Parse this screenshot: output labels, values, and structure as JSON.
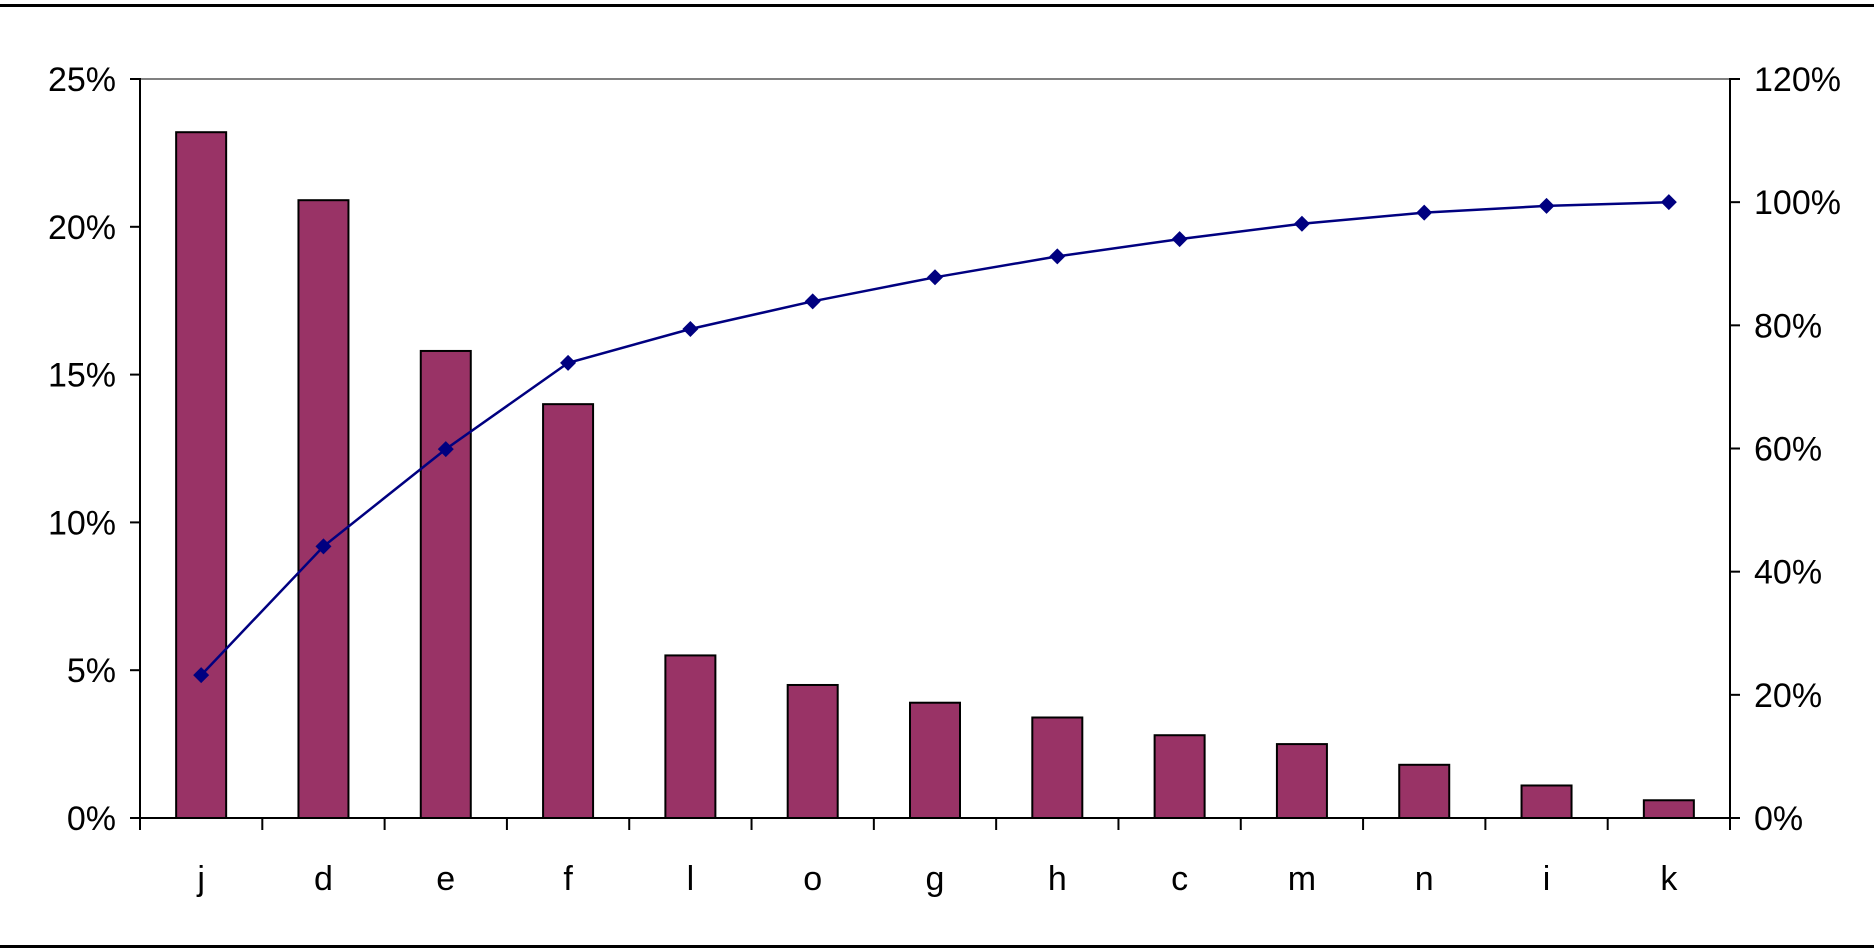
{
  "chart_data": {
    "type": "bar",
    "title": "",
    "xlabel": "",
    "ylabel": "",
    "y2label": "",
    "categories": [
      "j",
      "d",
      "e",
      "f",
      "l",
      "o",
      "g",
      "h",
      "c",
      "m",
      "n",
      "i",
      "k"
    ],
    "series": [
      {
        "type": "bar",
        "axis": "left",
        "values": [
          23.2,
          20.9,
          15.8,
          14.0,
          5.5,
          4.5,
          3.9,
          3.4,
          2.8,
          2.5,
          1.8,
          1.1,
          0.6
        ]
      },
      {
        "type": "line",
        "axis": "right",
        "marker": "diamond",
        "values": [
          23.2,
          44.1,
          59.9,
          73.9,
          79.4,
          83.9,
          87.8,
          91.2,
          94.0,
          96.5,
          98.3,
          99.4,
          100.0
        ]
      }
    ],
    "ylim": [
      0,
      25
    ],
    "y2lim": [
      0,
      120
    ],
    "yticks": [
      "0%",
      "5%",
      "10%",
      "15%",
      "20%",
      "25%"
    ],
    "y2ticks": [
      "0%",
      "20%",
      "40%",
      "60%",
      "80%",
      "100%",
      "120%"
    ],
    "grid": "top border line only",
    "legend": "none",
    "colors": {
      "bar_fill": "#993366",
      "bar_stroke": "#000000",
      "line": "#000080",
      "axis": "#000000",
      "top_line": "#808080"
    }
  }
}
